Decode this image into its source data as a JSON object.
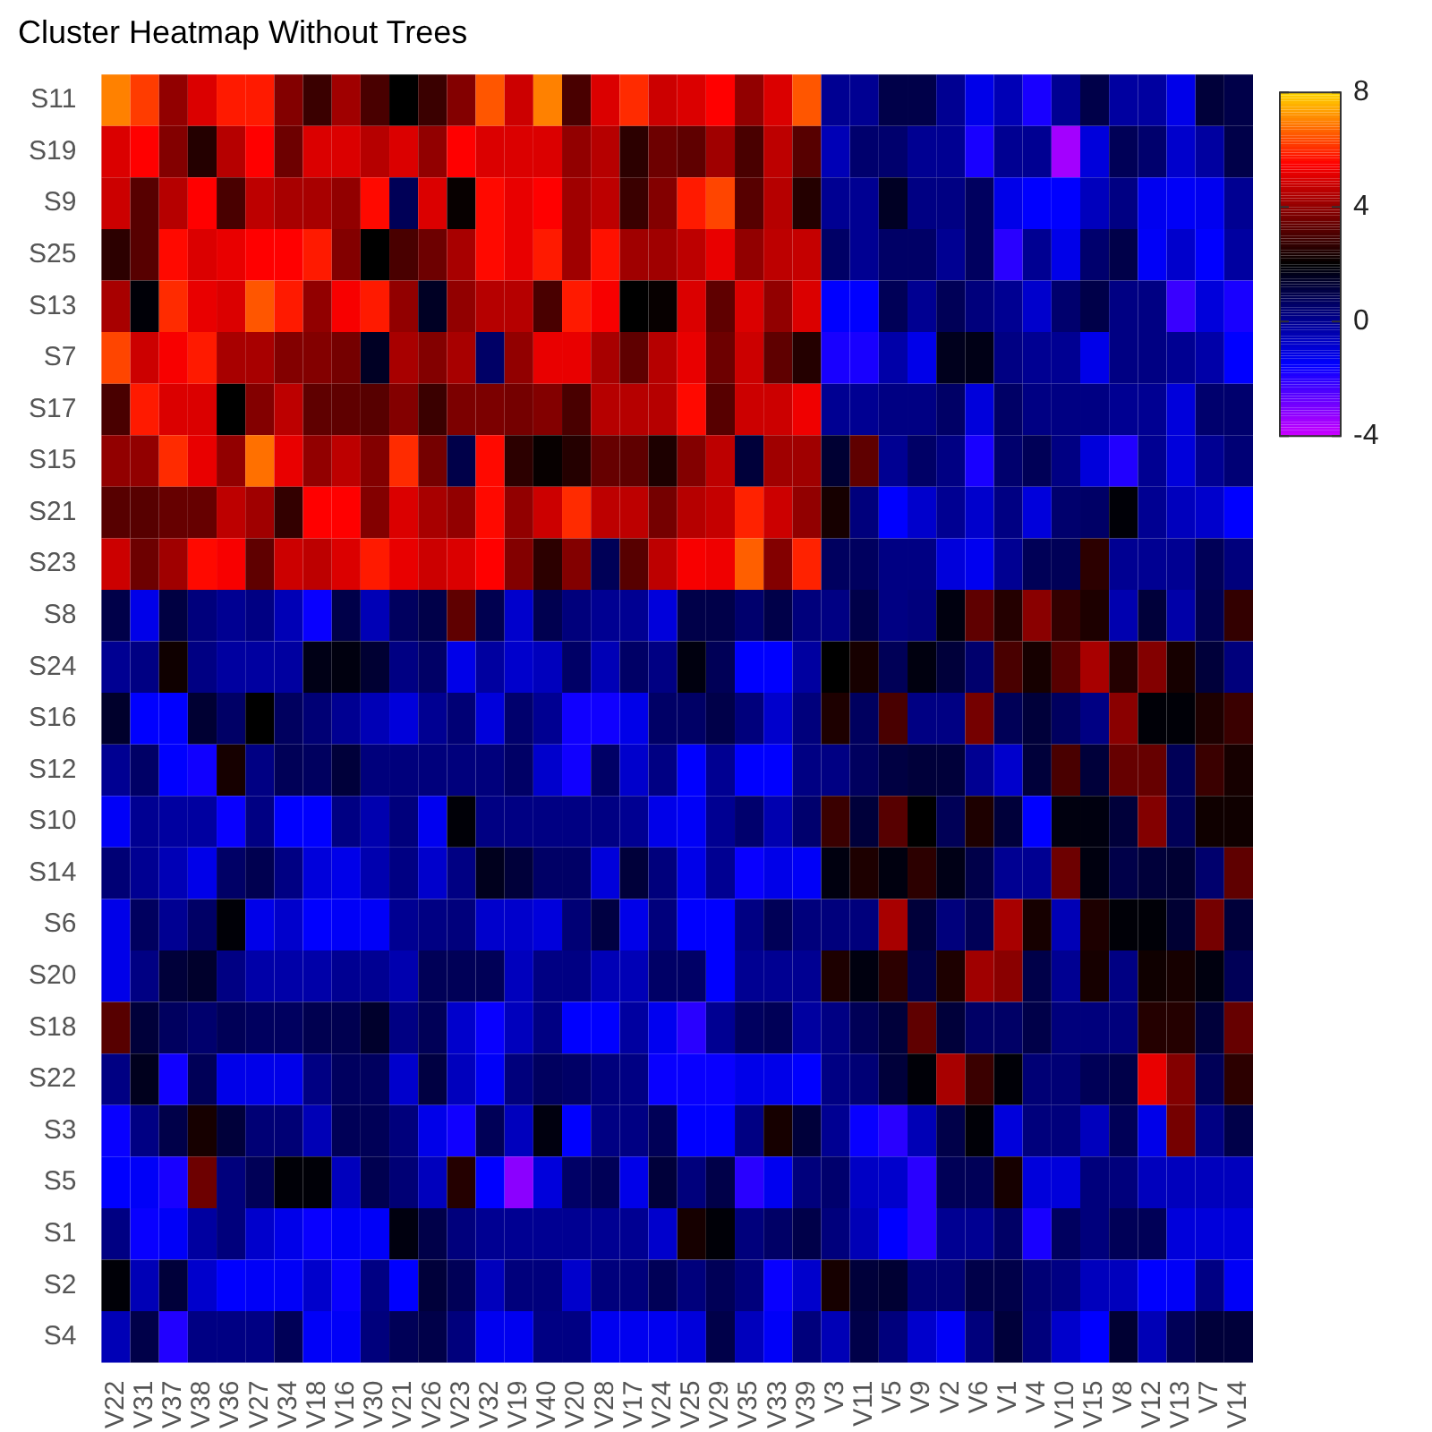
{
  "chart_data": {
    "type": "heatmap",
    "title": "Cluster Heatmap Without Trees",
    "categories": [
      "V22",
      "V31",
      "V37",
      "V38",
      "V36",
      "V27",
      "V34",
      "V18",
      "V16",
      "V30",
      "V21",
      "V26",
      "V23",
      "V32",
      "V19",
      "V40",
      "V20",
      "V28",
      "V17",
      "V24",
      "V25",
      "V29",
      "V35",
      "V33",
      "V39",
      "V3",
      "V11",
      "V5",
      "V9",
      "V2",
      "V6",
      "V1",
      "V4",
      "V10",
      "V15",
      "V8",
      "V12",
      "V13",
      "V7",
      "V14"
    ],
    "y_categories": [
      "S11",
      "S19",
      "S9",
      "S25",
      "S13",
      "S7",
      "S17",
      "S15",
      "S21",
      "S23",
      "S8",
      "S24",
      "S16",
      "S12",
      "S10",
      "S14",
      "S6",
      "S20",
      "S18",
      "S22",
      "S3",
      "S5",
      "S1",
      "S2",
      "S4"
    ],
    "cells": [
      [
        7,
        6.2,
        4,
        5,
        5.8,
        5.8,
        3.8,
        2.8,
        4.2,
        3,
        2,
        2.8,
        3.8,
        6.5,
        4.8,
        7,
        3,
        5,
        6,
        4.8,
        5,
        5.5,
        4,
        5,
        6.5,
        0,
        0,
        1,
        1,
        0,
        -1.2,
        -0.5,
        -1.8,
        0,
        1,
        -0.2,
        -0.2,
        -1.2,
        1.2,
        1
      ],
      [
        5,
        5.5,
        3.8,
        2.5,
        4.5,
        5.5,
        3.5,
        5,
        5,
        4.5,
        5,
        4,
        5.5,
        5,
        5,
        5,
        4,
        4.5,
        2.6,
        3.5,
        3.3,
        4.2,
        3,
        4.6,
        3.2,
        -0.5,
        0.5,
        0.5,
        0,
        0,
        -1.8,
        0,
        0,
        -3.5,
        -1,
        0.8,
        0.5,
        -0.8,
        -0.2,
        1
      ],
      [
        4.8,
        3.2,
        4.5,
        5.5,
        3,
        4.6,
        4.3,
        4.3,
        4,
        5.6,
        0.8,
        5,
        2.1,
        5.6,
        5.2,
        5.5,
        4.2,
        4.6,
        2.8,
        3.8,
        5.8,
        6.3,
        3.2,
        4.5,
        2.5,
        0,
        0,
        1.5,
        0.2,
        0.2,
        0.7,
        -1.2,
        -1.5,
        -1.5,
        -0.6,
        0.2,
        -1.3,
        -1.4,
        -1.3,
        0
      ],
      [
        2.6,
        3.2,
        5.6,
        5,
        5.2,
        5.5,
        5.5,
        5.8,
        3.8,
        2,
        3,
        3.5,
        4.3,
        5.6,
        5.2,
        5.8,
        4.2,
        5.7,
        4.2,
        4.2,
        4.6,
        5.2,
        4,
        4.6,
        4.7,
        0.6,
        0,
        0.6,
        0.6,
        0,
        0.7,
        -2,
        0,
        -1.2,
        0.5,
        1,
        -1.4,
        -0.8,
        -1.5,
        -0.2
      ],
      [
        4.3,
        1.9,
        6,
        5.2,
        5,
        6.5,
        5.8,
        4,
        5.4,
        5.8,
        4,
        1.5,
        4,
        4.5,
        4.5,
        3,
        5.8,
        5.4,
        2,
        2.1,
        5,
        3.3,
        5,
        4,
        5,
        -1.5,
        -1.5,
        0.8,
        0,
        0.8,
        0.3,
        0,
        -0.8,
        0.5,
        1,
        0.2,
        0.2,
        -2.2,
        -1,
        -1.8
      ],
      [
        6.3,
        4.8,
        5.4,
        5.8,
        4.3,
        4.3,
        3.8,
        3.8,
        3.6,
        1.5,
        4.3,
        3.8,
        4.3,
        0.6,
        4,
        5.2,
        5.2,
        4.3,
        3.3,
        4.5,
        5.2,
        3.5,
        4.8,
        3.3,
        2.5,
        -1.8,
        -1.8,
        -0.3,
        -1.2,
        1.6,
        1.7,
        0.2,
        0,
        0,
        -1.2,
        0.2,
        0.2,
        0,
        -0.3,
        -1.5
      ],
      [
        3,
        5.8,
        5,
        5,
        2,
        3.8,
        4.6,
        3.3,
        3.3,
        3.2,
        3.8,
        2.8,
        3.7,
        3.7,
        3.6,
        3.8,
        3,
        4.5,
        4.5,
        4.5,
        5.6,
        3.2,
        4.8,
        4.8,
        5.3,
        0,
        0,
        0.2,
        0.2,
        0.6,
        -1,
        0.6,
        0.2,
        0.2,
        0.2,
        0,
        0,
        -1,
        0.5,
        0.5
      ],
      [
        4,
        4,
        6,
        5.2,
        4,
        6.8,
        5.2,
        4,
        4.6,
        3.8,
        6,
        3.6,
        1,
        5.6,
        2.6,
        2.1,
        2.5,
        3.4,
        3.3,
        2.4,
        3.8,
        4.6,
        1.2,
        4.2,
        4.2,
        1.3,
        3.3,
        0,
        0.6,
        0.2,
        -1.8,
        0.5,
        0.8,
        0.2,
        -1,
        -1.9,
        0,
        -1,
        0,
        0.4
      ],
      [
        3.2,
        3.2,
        3.4,
        3.4,
        4.6,
        4.2,
        2.7,
        5.5,
        5.5,
        3.8,
        5,
        4.3,
        4,
        5.6,
        4,
        4.8,
        6,
        4.6,
        4.6,
        3.6,
        4.5,
        4.7,
        5.9,
        4.8,
        4,
        2.3,
        0.3,
        -1.5,
        -0.8,
        0,
        -0.8,
        0.2,
        -1,
        0.5,
        0.6,
        1.9,
        0,
        -0.6,
        -0.8,
        -1.5
      ],
      [
        4.8,
        3.5,
        4.2,
        5.6,
        5.4,
        3.3,
        4.8,
        4.6,
        5,
        5.8,
        5.2,
        4.8,
        5,
        5.5,
        3.8,
        2.6,
        3.8,
        0.8,
        3.2,
        4.6,
        5.4,
        5.3,
        6.6,
        3.8,
        5.9,
        0.7,
        0.7,
        0.2,
        0.2,
        -1,
        -1.3,
        0,
        0.8,
        0.8,
        2.6,
        0,
        0,
        0,
        0.8,
        0.3
      ],
      [
        1,
        -1.2,
        1.1,
        0.3,
        0,
        0.2,
        -0.5,
        -1.6,
        1,
        -0.5,
        0.7,
        1,
        3.3,
        0.9,
        -0.8,
        0.9,
        0.3,
        0,
        0,
        -1,
        1,
        1,
        0.5,
        1,
        0.3,
        0.2,
        1,
        0.2,
        0.3,
        1.8,
        3.3,
        2.5,
        3.9,
        2.7,
        2.4,
        -0.4,
        1.2,
        -0.3,
        0.9,
        2.7
      ],
      [
        0,
        0.2,
        2.2,
        0.2,
        -0.2,
        -0.2,
        -0.2,
        1.7,
        1.8,
        1.3,
        0.2,
        0.6,
        -1.2,
        -0.2,
        -0.8,
        -0.6,
        0.6,
        -0.5,
        0.6,
        0.2,
        1.8,
        0.8,
        -1.5,
        -1.5,
        -0.2,
        2,
        2.3,
        0.8,
        1.8,
        1.2,
        0.5,
        3,
        2.3,
        3.2,
        4.3,
        2.5,
        3.8,
        2.3,
        1.2,
        0.3
      ],
      [
        1.4,
        -1.5,
        -1.5,
        1.3,
        0.6,
        2,
        0.7,
        0.4,
        0,
        -0.5,
        -1,
        0,
        0.4,
        -1,
        0.5,
        0,
        -1.7,
        -1.7,
        -1.2,
        0.6,
        0.6,
        1,
        0.3,
        -0.8,
        0.3,
        2.4,
        0.7,
        3,
        0.2,
        0.2,
        3.6,
        0.8,
        1.2,
        0.7,
        0.2,
        3.9,
        1.9,
        1.9,
        2.4,
        2.8
      ],
      [
        0,
        0.6,
        -1.5,
        -1.7,
        2.3,
        0.2,
        0.8,
        0.7,
        1.2,
        0.3,
        0.3,
        0.3,
        0.3,
        0.3,
        0.6,
        -0.8,
        -1.7,
        0.6,
        -0.8,
        0.2,
        -1.5,
        0,
        -1.5,
        -1.5,
        0.2,
        0.2,
        0.7,
        1.1,
        1.2,
        1.2,
        0,
        -0.8,
        1.2,
        3,
        1.2,
        3.4,
        3.4,
        0.8,
        2.8,
        2.3
      ],
      [
        -1.4,
        0,
        -0.2,
        -0.2,
        -1.6,
        0.2,
        -1.5,
        -1.5,
        0.2,
        -0.4,
        0.3,
        -1.3,
        1.9,
        0.2,
        0.2,
        0.2,
        0.2,
        0.2,
        0,
        -1.2,
        -1.4,
        0,
        0.5,
        -0.4,
        0.5,
        2.8,
        1.2,
        3.2,
        2,
        0.8,
        2.4,
        1.2,
        -1.5,
        1.8,
        1.8,
        1.2,
        3.8,
        0.8,
        2.2,
        2.2
      ],
      [
        0.4,
        0,
        -0.5,
        -1.2,
        0.6,
        0.9,
        0.2,
        -1,
        -1.2,
        -0.4,
        0.2,
        -0.8,
        0.2,
        1.6,
        1.2,
        0.6,
        0.6,
        -1,
        1.2,
        0.3,
        -1.2,
        0,
        -1.6,
        -1.2,
        -1.4,
        1.8,
        2.4,
        1.8,
        2.6,
        1.7,
        1,
        0,
        0,
        3.5,
        1.8,
        1,
        1.2,
        1.3,
        0.5,
        3.3
      ],
      [
        -1.2,
        0.7,
        0,
        0.6,
        1.9,
        -1.2,
        -0.8,
        -1.5,
        -1.4,
        -1.4,
        0,
        0.2,
        0.3,
        -0.8,
        -0.8,
        -1,
        0.4,
        1.1,
        -1.2,
        0.3,
        -1.5,
        -1.5,
        0.2,
        0.8,
        0.3,
        0.3,
        0.3,
        4.3,
        1.2,
        0.3,
        0.8,
        4.3,
        2.3,
        -0.5,
        2.4,
        1.9,
        1.9,
        1.3,
        3.6,
        1.2
      ],
      [
        -1.2,
        0.2,
        1.2,
        1.4,
        0.2,
        -0.3,
        -0.3,
        -0.3,
        0,
        0,
        -0.4,
        0.8,
        0.8,
        0.8,
        -0.6,
        0.2,
        0.2,
        -0.5,
        -0.5,
        0.6,
        0.6,
        -1.5,
        0,
        0,
        0,
        2.4,
        1.8,
        2.6,
        1,
        2.4,
        4.2,
        3.9,
        1,
        0,
        2.3,
        0.2,
        2.2,
        2.3,
        1.8,
        0.8
      ],
      [
        3.2,
        1.2,
        0.7,
        0.5,
        0.8,
        0.7,
        0.7,
        0.9,
        0.9,
        1.4,
        0.2,
        0.8,
        -0.8,
        -1.6,
        -0.6,
        0.2,
        -1.5,
        -1.5,
        -0.2,
        -1.3,
        -2,
        0,
        0.7,
        0.8,
        -0.2,
        0.2,
        0.8,
        1.2,
        3.3,
        1.2,
        0.6,
        0.6,
        1,
        0.3,
        0.3,
        0.3,
        2.5,
        2.5,
        1.2,
        3.4
      ],
      [
        0.2,
        1.6,
        -1.7,
        0.8,
        -1.2,
        -1.2,
        -1.2,
        0.2,
        0.7,
        0.7,
        -0.8,
        1.1,
        -0.6,
        -1.4,
        0.3,
        0.7,
        0.6,
        0.3,
        0.2,
        -1.6,
        -1.6,
        -1.6,
        -1.2,
        -1.2,
        -1.5,
        0.2,
        0.4,
        1.2,
        1.9,
        4.3,
        2.8,
        1.9,
        0.4,
        0.4,
        0.8,
        1,
        5.2,
        3.8,
        0.8,
        2.6
      ],
      [
        -1.6,
        0.2,
        1,
        2.3,
        1.2,
        0.4,
        0.4,
        -0.5,
        0.8,
        0.8,
        0.3,
        -1.2,
        -1.7,
        0.8,
        -0.6,
        1.8,
        -1.5,
        0.2,
        0.2,
        0.8,
        -1.5,
        -1.5,
        0.2,
        2.3,
        1.2,
        0,
        -1.6,
        -2,
        -0.5,
        1,
        1.9,
        -1,
        0.3,
        0.3,
        -0.6,
        0.8,
        -1.2,
        3.6,
        0.2,
        1
      ],
      [
        -1.5,
        -1.4,
        -1.8,
        3.5,
        0.3,
        0.8,
        1.9,
        1.9,
        -0.6,
        0.9,
        0.4,
        -0.6,
        2.5,
        -1.5,
        -3.2,
        -1,
        0.6,
        0.8,
        -1.2,
        1.2,
        0.3,
        1,
        -2,
        -1.3,
        0.3,
        0.5,
        -0.7,
        -0.8,
        -2,
        0.8,
        0.8,
        2.3,
        -1,
        -1,
        0.3,
        0.3,
        -0.6,
        -0.6,
        -0.6,
        -0.6
      ],
      [
        0.2,
        -1.6,
        -1.4,
        -0.2,
        0.3,
        -0.8,
        -1.2,
        -1.6,
        -1.4,
        -1.4,
        1.8,
        1,
        0.3,
        0,
        0,
        0,
        0,
        0,
        0,
        -0.8,
        2.3,
        1.9,
        0.3,
        0.6,
        1,
        0.3,
        -0.5,
        -1.5,
        -2,
        0,
        0,
        0.6,
        -1.8,
        0.7,
        0.3,
        0.8,
        0.8,
        -1,
        -1,
        -1
      ],
      [
        1.9,
        -0.5,
        1.2,
        -0.8,
        -1.5,
        -1.4,
        -1.4,
        -0.8,
        -1.6,
        0.2,
        -1.5,
        1.2,
        0.8,
        -0.6,
        0.3,
        0.3,
        -0.8,
        0.3,
        0.3,
        0.8,
        0.3,
        0.8,
        0.3,
        -1.6,
        -0.8,
        2.3,
        1.2,
        1.3,
        0.4,
        0.4,
        1,
        1,
        0.4,
        0.2,
        -0.6,
        -0.6,
        -1.5,
        -1.4,
        0.2,
        -1.4
      ],
      [
        -0.5,
        1,
        -1.9,
        0.2,
        0.2,
        0.2,
        0.8,
        -1.4,
        -1.4,
        0.3,
        0.8,
        1,
        0.3,
        -1.3,
        -1.3,
        0.2,
        0.2,
        -1.3,
        -1.3,
        -1.3,
        -1,
        1,
        -0.6,
        -1.4,
        0.3,
        -0.5,
        1,
        0.3,
        -0.8,
        -1.4,
        0.3,
        1.2,
        0.3,
        -0.8,
        -1.5,
        1.3,
        -0.5,
        0.8,
        1.2,
        1.2
      ]
    ],
    "clim": [
      -4,
      8
    ],
    "cticks": [
      -4,
      0,
      4,
      8
    ]
  }
}
